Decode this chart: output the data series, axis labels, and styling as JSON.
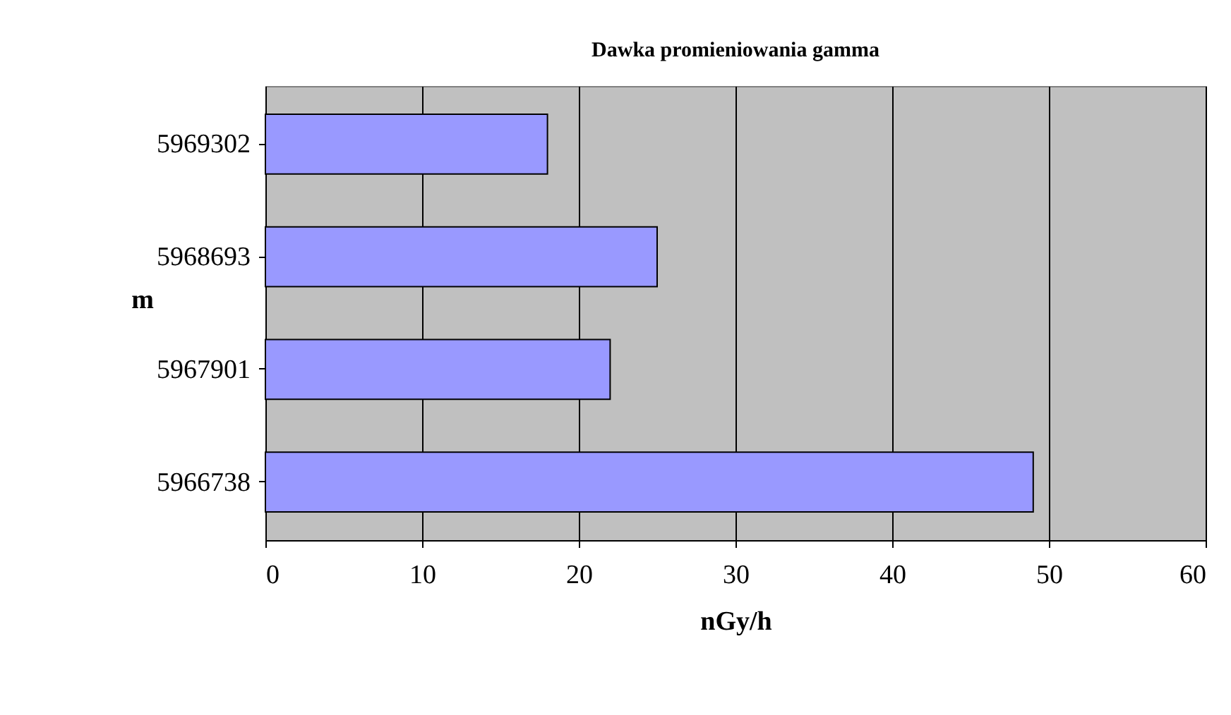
{
  "chart_data": {
    "type": "bar",
    "orientation": "horizontal",
    "title": "Dawka promieniowania gamma",
    "xlabel": "nGy/h",
    "ylabel": "m",
    "categories": [
      "5969302",
      "5968693",
      "5967901",
      "5966738"
    ],
    "values": [
      18,
      25,
      22,
      49
    ],
    "color": "#9999ff",
    "xlim": [
      0,
      60
    ],
    "xticks": [
      0,
      10,
      20,
      30,
      40,
      50,
      60
    ],
    "grid": "x"
  }
}
